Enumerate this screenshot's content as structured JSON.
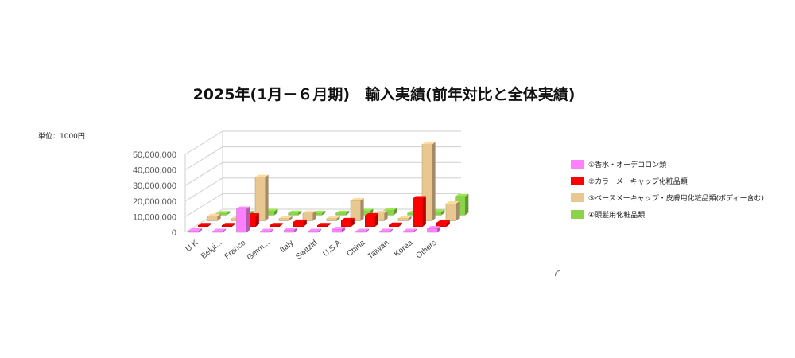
{
  "title": "2025年(1月－６月期)　輸入実績(前年対比と全体実績)",
  "unit_label": "単位：1000円",
  "chart_data": {
    "type": "bar",
    "title": "2025年(1月－６月期)　輸入実績(前年対比と全体実績)",
    "ylabel": "",
    "xlabel": "",
    "ylim": [
      0,
      50000000
    ],
    "yticks": [
      "0",
      "10,000,000",
      "20,000,000",
      "30,000,000",
      "40,000,000",
      "50,000,000"
    ],
    "categories": [
      "U K",
      "Belgi...",
      "France",
      "Germ...",
      "Italy",
      "Switzld",
      "U.S.A",
      "China",
      "Taiwan",
      "Korea",
      "Others"
    ],
    "series": [
      {
        "name": "①香水・オーデコロン類",
        "color": "#ff80ff",
        "values": [
          1000000,
          200000,
          15000000,
          300000,
          1500000,
          300000,
          2000000,
          500000,
          300000,
          500000,
          2500000
        ]
      },
      {
        "name": "②カラーメーキャップ化粧品類",
        "color": "#ff0000",
        "values": [
          600000,
          400000,
          7000000,
          500000,
          3000000,
          400000,
          4000000,
          7000000,
          1000000,
          18000000,
          2500000
        ]
      },
      {
        "name": "③ベースメーキャップ・皮膚用化粧品類(ボディー含む)",
        "color": "#e8c890",
        "values": [
          3000000,
          1500000,
          28000000,
          1500000,
          5000000,
          1500000,
          13000000,
          5000000,
          1500000,
          49000000,
          11000000
        ]
      },
      {
        "name": "④頭髪用化粧品類",
        "color": "#8bd34a",
        "values": [
          1000000,
          1200000,
          2500000,
          1300000,
          1200000,
          1300000,
          2500000,
          3000000,
          1200000,
          2000000,
          12000000
        ]
      }
    ],
    "grid": true,
    "legend_position": "right"
  }
}
